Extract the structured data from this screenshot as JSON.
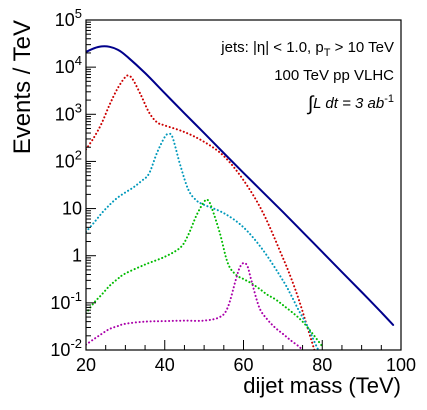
{
  "chart_data": {
    "type": "line",
    "xlabel": "dijet mass (TeV)",
    "ylabel": "Events / TeV",
    "xlim": [
      20,
      100
    ],
    "ylim": [
      0.01,
      100000
    ],
    "yscale": "log",
    "x_ticks": [
      20,
      40,
      60,
      80,
      100
    ],
    "y_ticks": [
      {
        "value": 0.01,
        "base": "10",
        "exp": "-2"
      },
      {
        "value": 0.1,
        "base": "10",
        "exp": "-1"
      },
      {
        "value": 1,
        "base": "1",
        "exp": ""
      },
      {
        "value": 10,
        "base": "10",
        "exp": ""
      },
      {
        "value": 100,
        "base": "10",
        "exp": "2"
      },
      {
        "value": 1000,
        "base": "10",
        "exp": "3"
      },
      {
        "value": 10000,
        "base": "10",
        "exp": "4"
      },
      {
        "value": 100000,
        "base": "10",
        "exp": "5"
      }
    ],
    "annotations": {
      "line1_prefix": "jets: |η| < 1.0, p",
      "line1_sub": "T",
      "line1_suffix": " > 10 TeV",
      "line2": "100 TeV pp VLHC",
      "line3_integral": "∫",
      "line3_text": "L dt = 3 ab",
      "line3_exp": "-1"
    },
    "grid": false,
    "legend": "none",
    "series": [
      {
        "color": "#00008b",
        "style": "solid",
        "x": [
          20,
          22,
          24,
          26,
          28,
          30,
          35,
          40,
          45,
          50,
          55,
          60,
          65,
          70,
          75,
          80,
          85,
          90,
          95,
          98
        ],
        "y": [
          21000,
          25000,
          27500,
          27000,
          23500,
          18000,
          7500,
          2800,
          1050,
          400,
          150,
          57,
          22,
          8.5,
          3.2,
          1.2,
          0.45,
          0.17,
          0.063,
          0.034
        ]
      },
      {
        "color": "#cc0000",
        "style": "dotted",
        "x": [
          20,
          22,
          24,
          26,
          28,
          30,
          31,
          32,
          34,
          36,
          38,
          40,
          45,
          50,
          55,
          60,
          65,
          70,
          72,
          74,
          76,
          78
        ],
        "y": [
          180,
          320,
          650,
          1600,
          3500,
          6200,
          6500,
          5300,
          2500,
          1100,
          680,
          580,
          420,
          260,
          130,
          40,
          8,
          0.9,
          0.35,
          0.12,
          0.035,
          0.01
        ]
      },
      {
        "color": "#0099bb",
        "style": "dotted",
        "x": [
          20,
          22,
          24,
          26,
          28,
          30,
          32,
          34,
          36,
          38,
          40,
          41,
          42,
          44,
          46,
          48,
          50,
          55,
          60,
          65,
          70,
          72,
          74,
          76,
          78,
          79
        ],
        "y": [
          3.2,
          5,
          8,
          12,
          17,
          22,
          28,
          38,
          55,
          150,
          330,
          380,
          320,
          80,
          25,
          15,
          12,
          8,
          4,
          1.3,
          0.3,
          0.15,
          0.07,
          0.035,
          0.015,
          0.01
        ]
      },
      {
        "color": "#00bb00",
        "style": "dotted",
        "x": [
          20,
          22,
          24,
          26,
          28,
          30,
          35,
          40,
          44,
          46,
          48,
          50,
          51,
          52,
          54,
          56,
          58,
          60,
          62,
          64,
          66,
          68,
          70,
          75,
          80
        ],
        "y": [
          0.06,
          0.1,
          0.15,
          0.23,
          0.32,
          0.42,
          0.65,
          0.95,
          1.5,
          2.8,
          7,
          14,
          15,
          10,
          3,
          0.7,
          0.4,
          0.32,
          0.26,
          0.2,
          0.15,
          0.12,
          0.09,
          0.04,
          0.012
        ]
      },
      {
        "color": "#aa00aa",
        "style": "dotted",
        "x": [
          20,
          22,
          24,
          26,
          28,
          30,
          35,
          40,
          45,
          50,
          54,
          56,
          58,
          59,
          60,
          61,
          62,
          64,
          66,
          68,
          70,
          72,
          74,
          75
        ],
        "y": [
          0.013,
          0.017,
          0.022,
          0.028,
          0.032,
          0.036,
          0.04,
          0.041,
          0.042,
          0.042,
          0.05,
          0.08,
          0.3,
          0.55,
          0.7,
          0.6,
          0.3,
          0.08,
          0.045,
          0.03,
          0.022,
          0.016,
          0.012,
          0.01
        ]
      }
    ]
  }
}
